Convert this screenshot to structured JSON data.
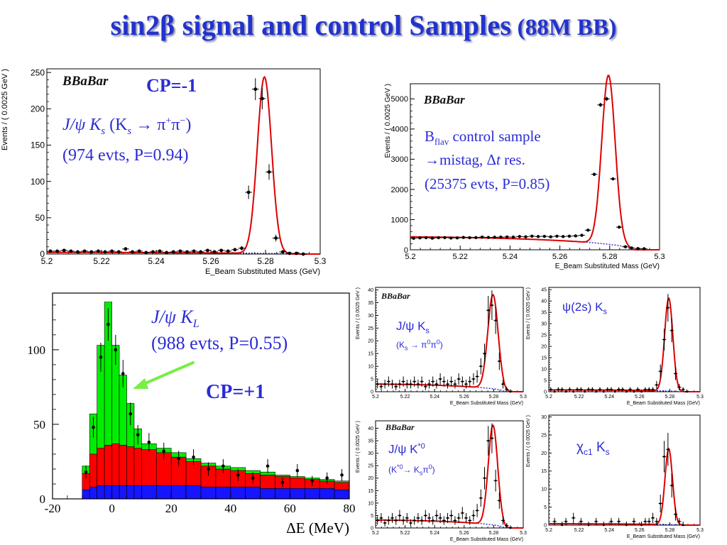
{
  "slide": {
    "title_main": "sin2β signal and control Samples",
    "title_paren": " (88M BB)"
  },
  "logo": {
    "text": "BaBar"
  },
  "colors": {
    "title": "#2233cc",
    "annotation": "#2b2bd6",
    "fit": "#dd0000",
    "background_fit": "#1a1acc",
    "green": "#00ee00",
    "red": "#ff0000",
    "blue": "#1515ff",
    "arrow": "#77ee44"
  },
  "chart_data": [
    {
      "id": "jpsiks",
      "type": "scatter",
      "xlabel": "E_Beam Substituted Mass (GeV)",
      "ylabel": "Events / ( 0.0025 GeV )",
      "xlim": [
        5.2,
        5.3
      ],
      "ylim": [
        0,
        255
      ],
      "xticks": [
        5.2,
        5.22,
        5.24,
        5.26,
        5.28,
        5.3
      ],
      "yticks": [
        0,
        50,
        100,
        150,
        200,
        250
      ],
      "fit": {
        "A": 2.2,
        "mu": 5.2796,
        "sigma": 0.0026,
        "peak": 243,
        "end": 5.289
      },
      "points": [
        [
          5.2013,
          4
        ],
        [
          5.2038,
          4
        ],
        [
          5.2063,
          5
        ],
        [
          5.2088,
          4
        ],
        [
          5.2113,
          3
        ],
        [
          5.2138,
          4
        ],
        [
          5.2163,
          3
        ],
        [
          5.2188,
          4
        ],
        [
          5.2213,
          3
        ],
        [
          5.2238,
          4
        ],
        [
          5.2263,
          3
        ],
        [
          5.2288,
          7
        ],
        [
          5.2313,
          3
        ],
        [
          5.2338,
          4
        ],
        [
          5.2363,
          2
        ],
        [
          5.2388,
          3
        ],
        [
          5.2413,
          4
        ],
        [
          5.2438,
          2
        ],
        [
          5.2463,
          3
        ],
        [
          5.2488,
          4
        ],
        [
          5.2513,
          3
        ],
        [
          5.2538,
          4
        ],
        [
          5.2563,
          3
        ],
        [
          5.2588,
          5
        ],
        [
          5.2613,
          3
        ],
        [
          5.2638,
          5
        ],
        [
          5.2663,
          4
        ],
        [
          5.2688,
          6
        ],
        [
          5.2713,
          8
        ],
        [
          5.2738,
          85
        ],
        [
          5.2763,
          227
        ],
        [
          5.2788,
          214
        ],
        [
          5.2813,
          113
        ],
        [
          5.2838,
          22
        ],
        [
          5.2863,
          3
        ],
        [
          5.2888,
          1
        ],
        [
          5.2913,
          1
        ],
        [
          5.2938,
          0
        ]
      ],
      "annotations": [
        "CP=-1",
        "J/ψ K",
        "s",
        " (K",
        "s",
        " → π",
        "+",
        "π",
        "−",
        ")",
        "(974 evts, P=0.94)"
      ]
    },
    {
      "id": "bflav",
      "type": "scatter",
      "xlabel": "E_Beam Substituted Mass (GeV)",
      "ylabel": "Events / ( 0.0025 GeV )",
      "xlim": [
        5.2,
        5.3
      ],
      "ylim": [
        0,
        5500
      ],
      "xticks": [
        5.2,
        5.22,
        5.24,
        5.26,
        5.28,
        5.3
      ],
      "yticks": [
        0,
        1000,
        2000,
        3000,
        4000,
        5000
      ],
      "fit": {
        "A": 430,
        "mu": 5.2795,
        "sigma": 0.0027,
        "peak": 5600,
        "end": 5.289
      },
      "points": [
        [
          5.2013,
          380
        ],
        [
          5.2038,
          395
        ],
        [
          5.2063,
          400
        ],
        [
          5.2088,
          385
        ],
        [
          5.2113,
          400
        ],
        [
          5.2138,
          405
        ],
        [
          5.2163,
          390
        ],
        [
          5.2188,
          395
        ],
        [
          5.2213,
          410
        ],
        [
          5.2238,
          400
        ],
        [
          5.2263,
          405
        ],
        [
          5.2288,
          420
        ],
        [
          5.2313,
          410
        ],
        [
          5.2338,
          415
        ],
        [
          5.2363,
          420
        ],
        [
          5.2388,
          425
        ],
        [
          5.2413,
          420
        ],
        [
          5.2438,
          440
        ],
        [
          5.2463,
          430
        ],
        [
          5.2488,
          450
        ],
        [
          5.2513,
          440
        ],
        [
          5.2538,
          445
        ],
        [
          5.2563,
          430
        ],
        [
          5.2588,
          450
        ],
        [
          5.2613,
          440
        ],
        [
          5.2638,
          450
        ],
        [
          5.2663,
          460
        ],
        [
          5.2688,
          480
        ],
        [
          5.2713,
          650
        ],
        [
          5.2738,
          2500
        ],
        [
          5.2763,
          4800
        ],
        [
          5.2788,
          5000
        ],
        [
          5.2813,
          2350
        ],
        [
          5.2838,
          750
        ],
        [
          5.2863,
          100
        ],
        [
          5.2888,
          60
        ],
        [
          5.2913,
          40
        ],
        [
          5.2938,
          35
        ]
      ],
      "annotations": [
        "B",
        "flav",
        " control sample",
        "→",
        "mistag, Δ",
        "t",
        " res.",
        "(25375 evts, P=0.85)"
      ]
    },
    {
      "id": "jpsikl",
      "type": "bar",
      "xlabel": "ΔE (MeV)",
      "xlim": [
        -20,
        80
      ],
      "ylim": [
        0,
        138
      ],
      "xticks": [
        -20,
        0,
        20,
        40,
        60,
        80
      ],
      "yticks": [
        0,
        50,
        100
      ],
      "bin_edges": [
        -10,
        -7.5,
        -5,
        -2.5,
        0,
        2.5,
        5,
        7.5,
        10,
        15,
        20,
        25,
        30,
        35,
        40,
        45,
        50,
        55,
        60,
        65,
        70,
        75,
        80
      ],
      "series": [
        {
          "name": "",
          "values": [
            22,
            57,
            103,
            132,
            103,
            83,
            64,
            47,
            37,
            34,
            31,
            27,
            24,
            22,
            21,
            19,
            18,
            16,
            15,
            14,
            13,
            12
          ]
        },
        {
          "name": "",
          "values": [
            17,
            30,
            34,
            36,
            37,
            36,
            35,
            34,
            33,
            31,
            28,
            25,
            22,
            20,
            19,
            17,
            16,
            15,
            14,
            13,
            12,
            11
          ]
        },
        {
          "name": "",
          "values": [
            6,
            8,
            9,
            9,
            9,
            9,
            9,
            9,
            9,
            9,
            9,
            9,
            8,
            8,
            8,
            8,
            7,
            7,
            7,
            7,
            7,
            6
          ]
        }
      ],
      "points": [
        [
          -8.75,
          18
        ],
        [
          -6.25,
          48
        ],
        [
          -3.75,
          95
        ],
        [
          -1.25,
          117
        ],
        [
          1.25,
          100
        ],
        [
          3.75,
          84
        ],
        [
          6.25,
          57
        ],
        [
          8.75,
          43
        ],
        [
          12.5,
          38
        ],
        [
          17.5,
          32
        ],
        [
          22.5,
          27
        ],
        [
          27.5,
          28
        ],
        [
          32.5,
          20
        ],
        [
          37.5,
          22
        ],
        [
          42.5,
          16
        ],
        [
          47.5,
          14
        ],
        [
          52.5,
          22
        ],
        [
          57.5,
          11
        ],
        [
          62.5,
          19
        ],
        [
          67.5,
          12
        ],
        [
          72.5,
          14
        ],
        [
          77.5,
          16
        ]
      ],
      "annotations": [
        "J/ψ K",
        "L",
        "(988 evts, P=0.55)",
        "CP=+1"
      ]
    },
    {
      "id": "jpsiks00",
      "type": "scatter",
      "xlabel": "E_Beam Substituted Mass (GeV)",
      "ylabel": "Events / ( 0.0025 GeV )",
      "xlim": [
        5.2,
        5.3
      ],
      "ylim": [
        0,
        41
      ],
      "xticks": [
        5.2,
        5.22,
        5.24,
        5.26,
        5.28,
        5.3
      ],
      "yticks": [
        0,
        5,
        10,
        15,
        20,
        25,
        30,
        35,
        40
      ],
      "fit": {
        "A": 3.0,
        "mu": 5.2795,
        "sigma": 0.0035,
        "peak": 37,
        "end": 5.287
      },
      "points": [
        [
          5.2013,
          3
        ],
        [
          5.2038,
          2
        ],
        [
          5.2063,
          3
        ],
        [
          5.2088,
          4
        ],
        [
          5.2113,
          3
        ],
        [
          5.2138,
          2
        ],
        [
          5.2163,
          3
        ],
        [
          5.2188,
          4
        ],
        [
          5.2213,
          3
        ],
        [
          5.2238,
          3
        ],
        [
          5.2263,
          4
        ],
        [
          5.2288,
          3
        ],
        [
          5.2313,
          4
        ],
        [
          5.2338,
          2
        ],
        [
          5.2363,
          3
        ],
        [
          5.2388,
          4
        ],
        [
          5.2413,
          3
        ],
        [
          5.2438,
          5
        ],
        [
          5.2463,
          4
        ],
        [
          5.2488,
          3
        ],
        [
          5.2513,
          4
        ],
        [
          5.2538,
          3
        ],
        [
          5.2563,
          5
        ],
        [
          5.2588,
          4
        ],
        [
          5.2613,
          3
        ],
        [
          5.2638,
          4
        ],
        [
          5.2663,
          5
        ],
        [
          5.2688,
          6
        ],
        [
          5.2713,
          10
        ],
        [
          5.2738,
          15
        ],
        [
          5.2763,
          32
        ],
        [
          5.2788,
          34
        ],
        [
          5.2813,
          28
        ],
        [
          5.2838,
          12
        ],
        [
          5.2863,
          3
        ],
        [
          5.2888,
          1
        ],
        [
          5.2913,
          0
        ]
      ],
      "annotations": [
        "J/ψ K",
        "s",
        "(K",
        "s",
        " → π",
        "0",
        "π",
        "0",
        ")"
      ]
    },
    {
      "id": "psi2s",
      "type": "scatter",
      "xlabel": "E_Beam Substituted Mass (GeV)",
      "ylabel": "Events / ( 0.0025 GeV )",
      "xlim": [
        5.2,
        5.3
      ],
      "ylim": [
        0,
        46
      ],
      "xticks": [
        5.2,
        5.22,
        5.24,
        5.26,
        5.28,
        5.3
      ],
      "yticks": [
        0,
        5,
        10,
        15,
        20,
        25,
        30,
        35,
        40,
        45
      ],
      "fit": {
        "A": 0.8,
        "mu": 5.2793,
        "sigma": 0.0027,
        "peak": 41,
        "end": 5.286
      },
      "points": [
        [
          5.2013,
          1
        ],
        [
          5.2038,
          0
        ],
        [
          5.2063,
          1
        ],
        [
          5.2088,
          1
        ],
        [
          5.2113,
          0
        ],
        [
          5.2138,
          1
        ],
        [
          5.2163,
          0
        ],
        [
          5.2188,
          1
        ],
        [
          5.2213,
          1
        ],
        [
          5.2238,
          0
        ],
        [
          5.2263,
          1
        ],
        [
          5.2288,
          1
        ],
        [
          5.2313,
          0
        ],
        [
          5.2338,
          1
        ],
        [
          5.2363,
          0
        ],
        [
          5.2388,
          1
        ],
        [
          5.2413,
          1
        ],
        [
          5.2438,
          0
        ],
        [
          5.2463,
          1
        ],
        [
          5.2488,
          1
        ],
        [
          5.2513,
          0
        ],
        [
          5.2538,
          1
        ],
        [
          5.2563,
          0
        ],
        [
          5.2588,
          1
        ],
        [
          5.2613,
          0
        ],
        [
          5.2638,
          1
        ],
        [
          5.2663,
          1
        ],
        [
          5.2688,
          1
        ],
        [
          5.2713,
          3
        ],
        [
          5.2738,
          9
        ],
        [
          5.2763,
          23
        ],
        [
          5.2788,
          37
        ],
        [
          5.2813,
          27
        ],
        [
          5.2838,
          8
        ],
        [
          5.2863,
          2
        ],
        [
          5.2888,
          1
        ],
        [
          5.2913,
          0
        ]
      ],
      "annotations": [
        "ψ(2s) K",
        "s"
      ]
    },
    {
      "id": "jpsikstar",
      "type": "scatter",
      "xlabel": "E_Beam Substituted Mass (GeV)",
      "ylabel": "Events / ( 0.0025 GeV )",
      "xlim": [
        5.2,
        5.3
      ],
      "ylim": [
        0,
        43
      ],
      "xticks": [
        5.2,
        5.22,
        5.24,
        5.26,
        5.28,
        5.3
      ],
      "yticks": [
        0,
        5,
        10,
        15,
        20,
        25,
        30,
        35,
        40
      ],
      "fit": {
        "A": 3.2,
        "mu": 5.2795,
        "sigma": 0.0032,
        "peak": 40,
        "end": 5.287
      },
      "points": [
        [
          5.2013,
          3
        ],
        [
          5.2038,
          4
        ],
        [
          5.2063,
          2
        ],
        [
          5.2088,
          3
        ],
        [
          5.2113,
          4
        ],
        [
          5.2138,
          3
        ],
        [
          5.2163,
          5
        ],
        [
          5.2188,
          3
        ],
        [
          5.2213,
          4
        ],
        [
          5.2238,
          2
        ],
        [
          5.2263,
          3
        ],
        [
          5.2288,
          4
        ],
        [
          5.2313,
          3
        ],
        [
          5.2338,
          5
        ],
        [
          5.2363,
          4
        ],
        [
          5.2388,
          3
        ],
        [
          5.2413,
          5
        ],
        [
          5.2438,
          4
        ],
        [
          5.2463,
          3
        ],
        [
          5.2488,
          4
        ],
        [
          5.2513,
          5
        ],
        [
          5.2538,
          3
        ],
        [
          5.2563,
          4
        ],
        [
          5.2588,
          6
        ],
        [
          5.2613,
          4
        ],
        [
          5.2638,
          3
        ],
        [
          5.2663,
          5
        ],
        [
          5.2688,
          7
        ],
        [
          5.2713,
          12
        ],
        [
          5.2738,
          20
        ],
        [
          5.2763,
          35
        ],
        [
          5.2788,
          36
        ],
        [
          5.2813,
          19
        ],
        [
          5.2838,
          11
        ],
        [
          5.2863,
          3
        ],
        [
          5.2888,
          1
        ],
        [
          5.2913,
          0
        ]
      ],
      "annotations": [
        "J/ψ K",
        "*0",
        "(K",
        "*0",
        "→ K",
        "s",
        "π",
        "0",
        ")"
      ]
    },
    {
      "id": "chic1",
      "type": "scatter",
      "xlabel": "E_Beam Substituted Mass (GeV)",
      "ylabel": "Events / ( 0.0025 GeV )",
      "xlim": [
        5.2,
        5.3
      ],
      "ylim": [
        0,
        30.5
      ],
      "xticks": [
        5.2,
        5.22,
        5.24,
        5.26,
        5.28,
        5.3
      ],
      "yticks": [
        0,
        5,
        10,
        15,
        20,
        25,
        30
      ],
      "fit": {
        "A": 0.4,
        "mu": 5.2793,
        "sigma": 0.0025,
        "peak": 21,
        "end": 5.286
      },
      "points": [
        [
          5.2038,
          1
        ],
        [
          5.2088,
          0
        ],
        [
          5.2113,
          1
        ],
        [
          5.2163,
          2
        ],
        [
          5.2213,
          1
        ],
        [
          5.2263,
          0
        ],
        [
          5.2313,
          1
        ],
        [
          5.2363,
          0
        ],
        [
          5.2413,
          1
        ],
        [
          5.2463,
          1
        ],
        [
          5.2513,
          0
        ],
        [
          5.2563,
          1
        ],
        [
          5.2613,
          0
        ],
        [
          5.2638,
          1
        ],
        [
          5.2663,
          1
        ],
        [
          5.2688,
          2
        ],
        [
          5.2713,
          1
        ],
        [
          5.2738,
          6
        ],
        [
          5.2763,
          19
        ],
        [
          5.2788,
          21
        ],
        [
          5.2813,
          11
        ],
        [
          5.2838,
          3
        ],
        [
          5.2863,
          1
        ],
        [
          5.2888,
          0
        ]
      ],
      "annotations": [
        "χ",
        "c1",
        " K",
        "s"
      ]
    }
  ]
}
